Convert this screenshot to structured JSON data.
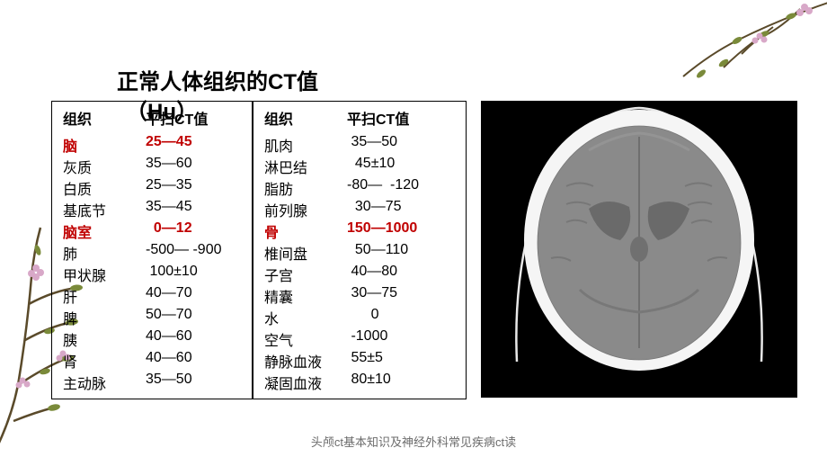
{
  "title": "正常人体组织的CT值",
  "title_unit": "（Hu）",
  "footer": "头颅ct基本知识及神经外科常见疾病ct读",
  "table": {
    "header_tissue": "组织",
    "header_value": "平扫CT值",
    "left": [
      {
        "name": "脑",
        "value": "25—45",
        "highlight": true
      },
      {
        "name": "灰质",
        "value": "35—60",
        "highlight": false
      },
      {
        "name": "白质",
        "value": "25—35",
        "highlight": false
      },
      {
        "name": "基底节",
        "value": "35—45",
        "highlight": false
      },
      {
        "name": "脑室",
        "value": "  0—12",
        "highlight": true
      },
      {
        "name": "肺",
        "value": "-500— -900",
        "highlight": false
      },
      {
        "name": "甲状腺",
        "value": " 100±10",
        "highlight": false
      },
      {
        "name": "肝",
        "value": "40—70",
        "highlight": false
      },
      {
        "name": "脾",
        "value": "50—70",
        "highlight": false
      },
      {
        "name": "胰",
        "value": "40—60",
        "highlight": false
      },
      {
        "name": "肾",
        "value": "40—60",
        "highlight": false
      },
      {
        "name": "主动脉",
        "value": "35—50",
        "highlight": false
      }
    ],
    "right": [
      {
        "name": "肌肉",
        "value": " 35—50",
        "highlight": false
      },
      {
        "name": "淋巴结",
        "value": "  45±10",
        "highlight": false
      },
      {
        "name": "脂肪",
        "value": "-80—  -120",
        "highlight": false
      },
      {
        "name": "前列腺",
        "value": "  30—75",
        "highlight": false
      },
      {
        "name": "骨",
        "value": "150—1000",
        "highlight": true
      },
      {
        "name": "椎间盘",
        "value": "  50—110",
        "highlight": false
      },
      {
        "name": "子宫",
        "value": " 40—80",
        "highlight": false
      },
      {
        "name": "精囊",
        "value": " 30—75",
        "highlight": false
      },
      {
        "name": "水",
        "value": "      0",
        "highlight": false
      },
      {
        "name": "空气",
        "value": " -1000",
        "highlight": false
      },
      {
        "name": "静脉血液",
        "value": " 55±5",
        "highlight": false
      },
      {
        "name": "凝固血液",
        "value": " 80±10",
        "highlight": false
      }
    ]
  },
  "colors": {
    "highlight": "#c00000",
    "text": "#000000",
    "footer": "#6b6b6b",
    "branch_stem": "#5a4a2a",
    "branch_leaf": "#7a8a3a",
    "flower": "#d8a8c8",
    "ct_bg": "#000000",
    "ct_skull": "#f5f5f5",
    "ct_brain": "#8a8a8a",
    "ct_vent": "#6a6a6a"
  }
}
